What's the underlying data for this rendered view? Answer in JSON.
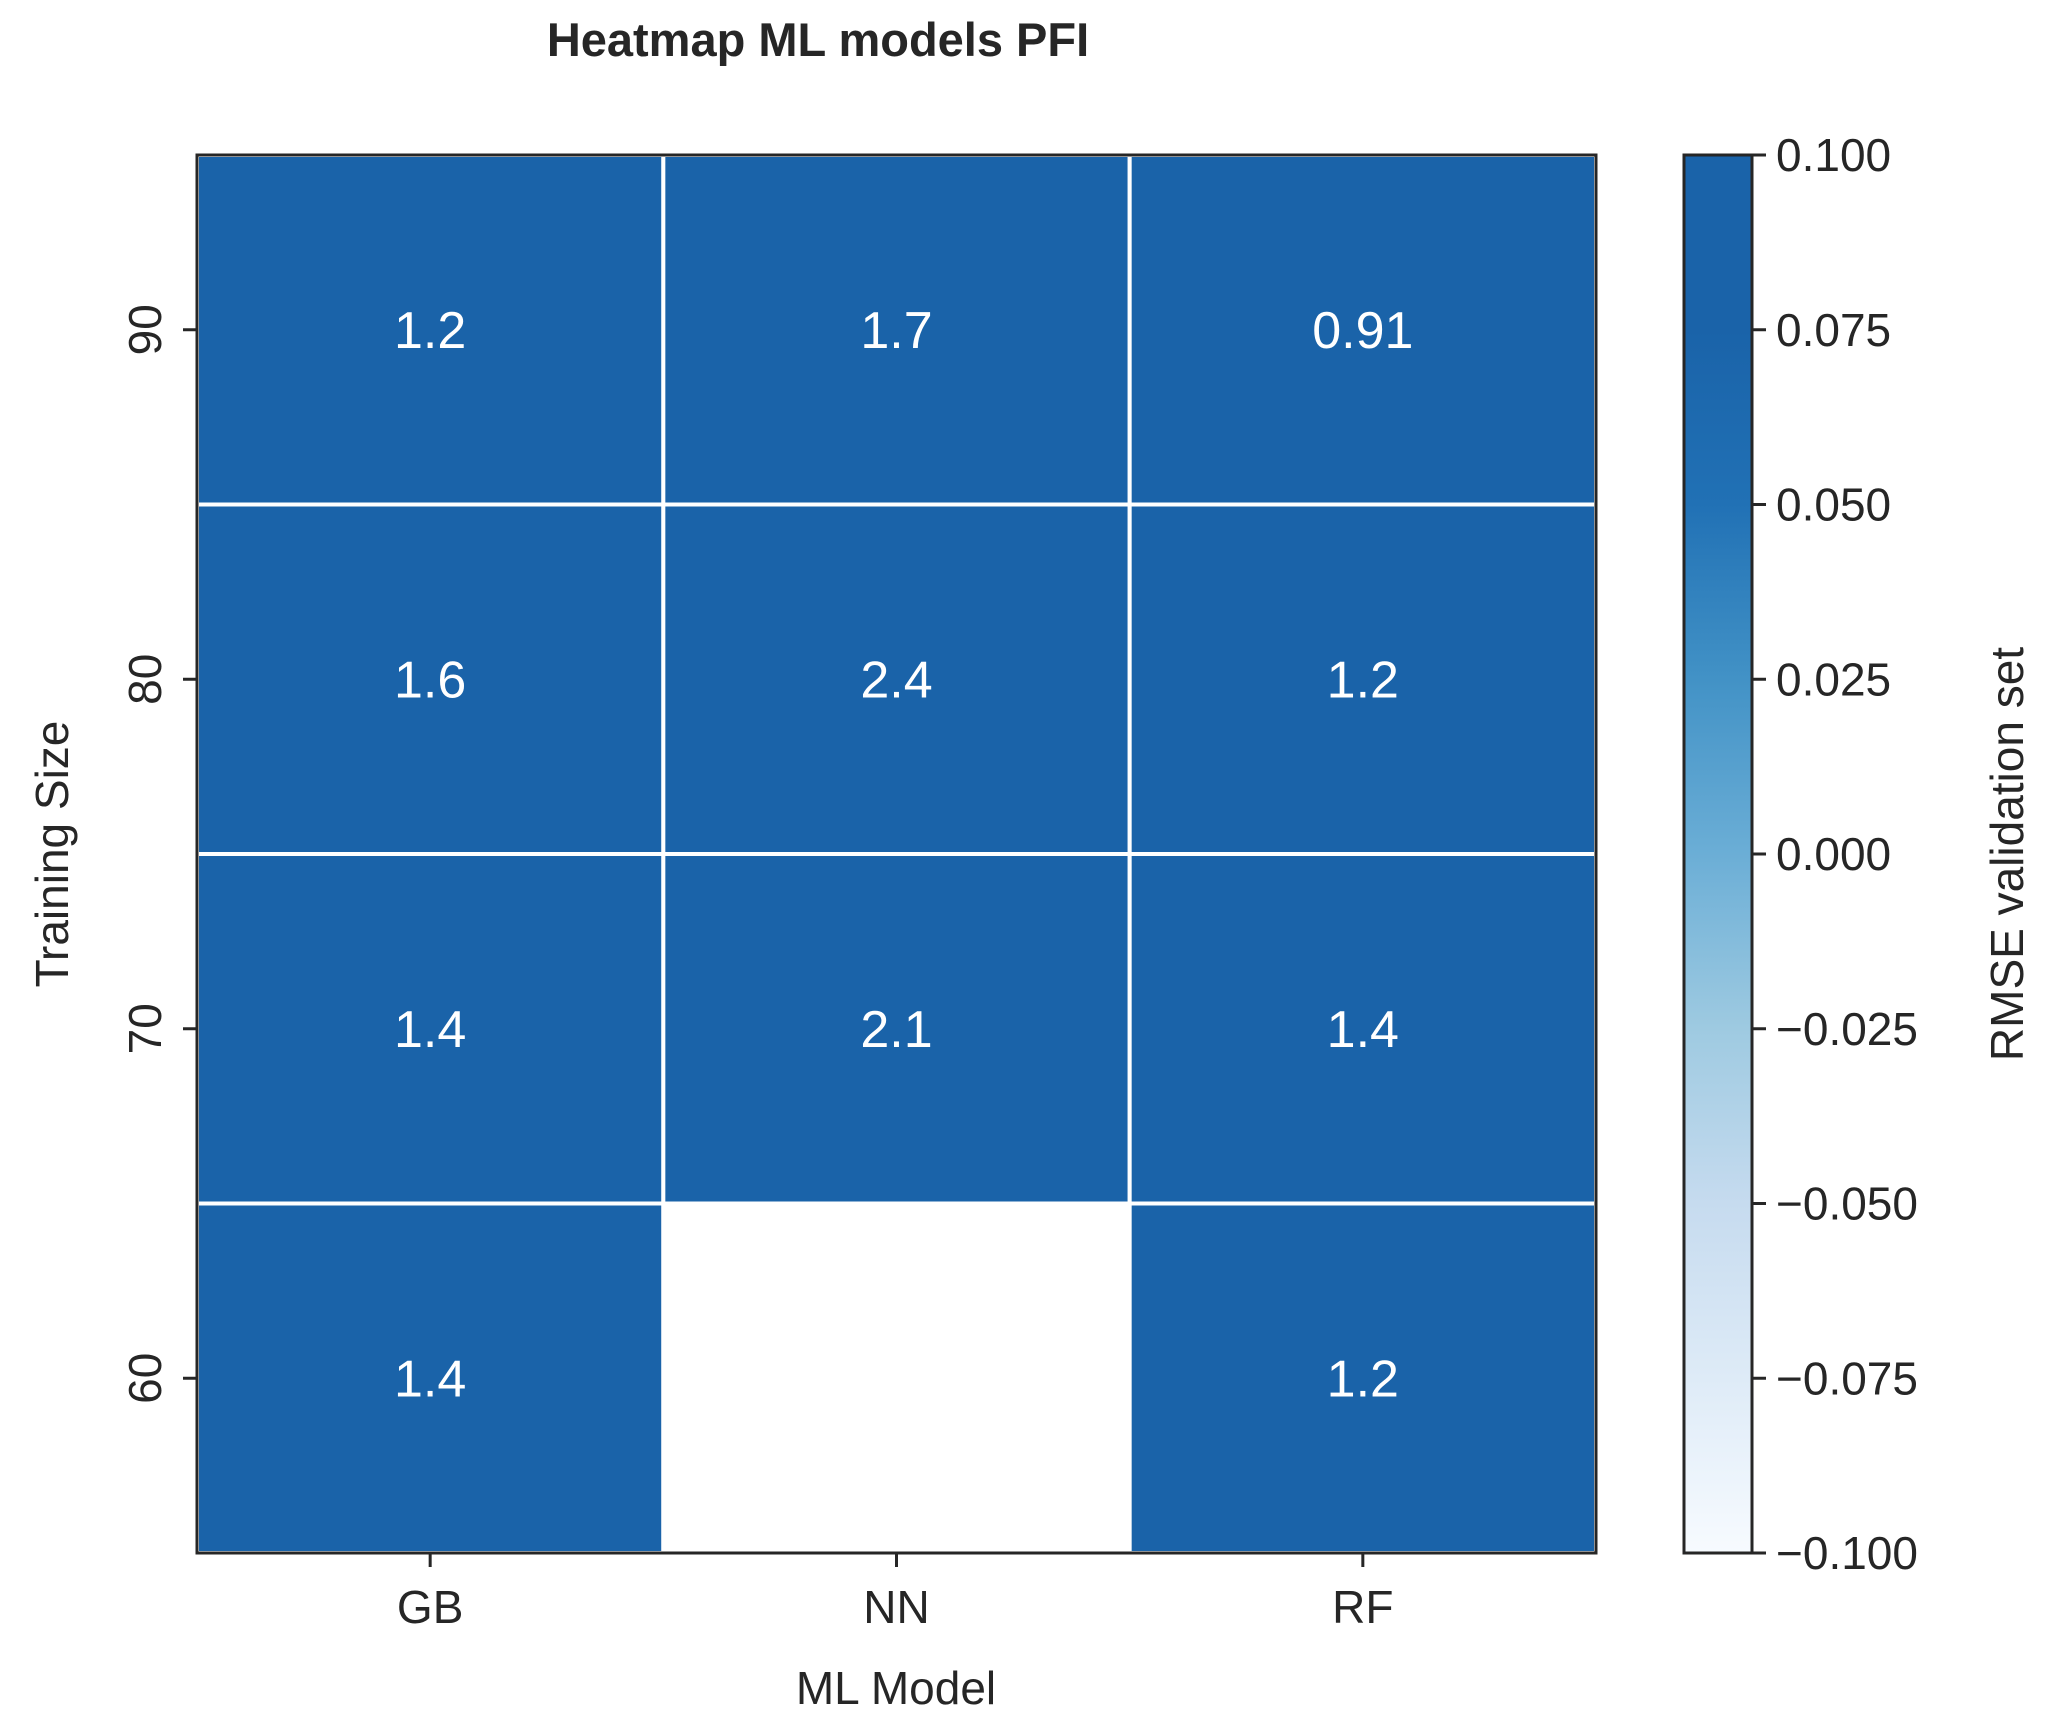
{
  "chart_data": {
    "type": "heatmap",
    "title": "Heatmap ML models PFI",
    "xlabel": "ML Model",
    "ylabel": "Training Size",
    "x_categories": [
      "GB",
      "NN",
      "RF"
    ],
    "y_categories": [
      "90",
      "80",
      "70",
      "60"
    ],
    "values": [
      [
        1.2,
        1.7,
        0.91
      ],
      [
        1.6,
        2.4,
        1.2
      ],
      [
        1.4,
        2.1,
        1.4
      ],
      [
        1.4,
        null,
        1.2
      ]
    ],
    "cell_labels": [
      [
        "1.2",
        "1.7",
        "0.91"
      ],
      [
        "1.6",
        "2.4",
        "1.2"
      ],
      [
        "1.4",
        "2.1",
        "1.4"
      ],
      [
        "1.4",
        "",
        "1.2"
      ]
    ],
    "colorbar": {
      "label": "RMSE validation set",
      "range": [
        -0.1,
        0.1
      ],
      "ticks": [
        "0.100",
        "0.075",
        "0.050",
        "0.025",
        "0.000",
        "−0.025",
        "−0.050",
        "−0.075",
        "−0.100"
      ],
      "colormap": "Blues"
    },
    "colors": {
      "cell_fill": "#1a63a9",
      "missing_fill": "#ffffff",
      "gridline": "#ffffff",
      "frame": "#262626"
    },
    "grid": false,
    "legend": "colorbar-right"
  }
}
